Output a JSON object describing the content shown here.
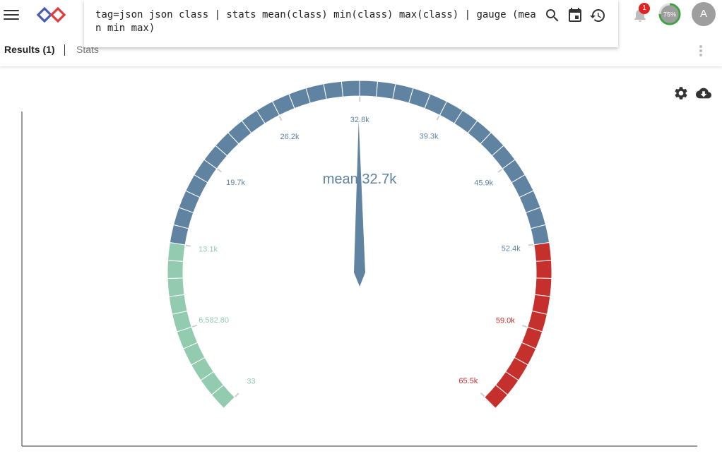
{
  "header": {
    "menu_icon": "hamburger-icon",
    "logo_icon": "infinity-logo",
    "notifications": {
      "icon": "bell-icon",
      "count": "1"
    },
    "progress": {
      "value": 0.75,
      "label": "75%",
      "color": "#43a047"
    },
    "avatar": {
      "initial": "A"
    }
  },
  "search": {
    "query": "tag=json json class | stats mean(class) min(class) max(class) | gauge (mean min max)",
    "actions": [
      {
        "name": "search-button",
        "icon": "search-icon"
      },
      {
        "name": "date-range-button",
        "icon": "calendar-icon"
      },
      {
        "name": "history-button",
        "icon": "history-icon"
      }
    ]
  },
  "tabs": {
    "results_label": "Results (1)",
    "stats_label": "Stats",
    "menu_icon": "more-vert-icon"
  },
  "toolbar": {
    "settings_icon": "gear-icon",
    "download_icon": "cloud-download-icon"
  },
  "colors": {
    "low": "#93cbb0",
    "mid": "#5f83a0",
    "high": "#c5302d",
    "needle": "#5f83a0"
  },
  "chart_data": {
    "type": "gauge",
    "min": 33,
    "max": 65535,
    "value": 32700,
    "value_label": "mean",
    "value_text": "32.7k",
    "bands": [
      {
        "from": 33,
        "to": 13100,
        "color": "#93cbb0"
      },
      {
        "from": 13100,
        "to": 52400,
        "color": "#5f83a0"
      },
      {
        "from": 52400,
        "to": 65535,
        "color": "#c5302d"
      }
    ],
    "ticks": [
      {
        "value": 33,
        "label": "33"
      },
      {
        "value": 6582.8,
        "label": "6,582.80"
      },
      {
        "value": 13100,
        "label": "13.1k"
      },
      {
        "value": 19700,
        "label": "19.7k"
      },
      {
        "value": 26200,
        "label": "26.2k"
      },
      {
        "value": 32800,
        "label": "32.8k"
      },
      {
        "value": 39300,
        "label": "39.3k"
      },
      {
        "value": 45900,
        "label": "45.9k"
      },
      {
        "value": 52400,
        "label": "52.4k"
      },
      {
        "value": 59000,
        "label": "59.0k"
      },
      {
        "value": 65500,
        "label": "65.5k"
      }
    ]
  }
}
